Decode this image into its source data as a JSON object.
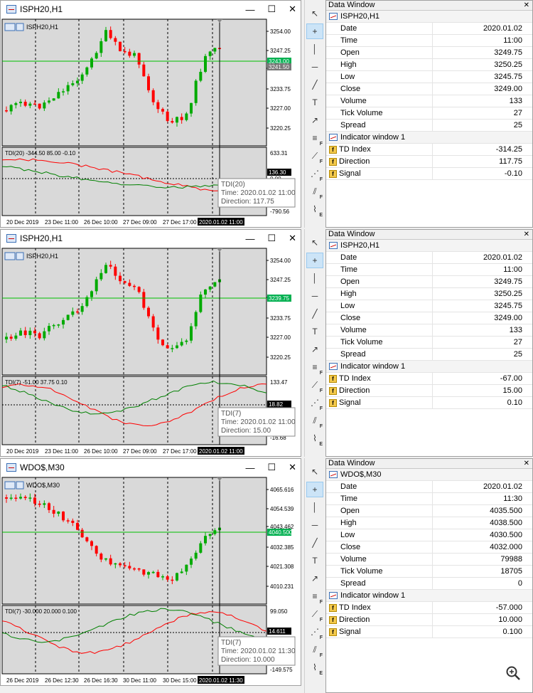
{
  "panels": [
    {
      "title": "ISPH20,H1",
      "symbol_label": "ISPH20,H1",
      "price_ticks": [
        "3254.00",
        "3247.25",
        "3240.50",
        "3233.75",
        "3227.00",
        "3220.25"
      ],
      "price_tags": [
        "3243.00",
        "3241.50"
      ],
      "indicator_label": "TDI(20) -344.50 85.00 -0.10",
      "ind_ticks": [
        "633.31",
        "136.30",
        "0.00",
        "-790.56"
      ],
      "tooltip": [
        "TDI(20)",
        "Time: 2020.01.02 11:00",
        "Direction: 117.75"
      ],
      "time_ticks": [
        "20 Dec 2019",
        "23 Dec 11:00",
        "26 Dec 10:00",
        "27 Dec 09:00",
        "27 Dec 17:00",
        "2020.01.02 11:00"
      ]
    },
    {
      "title": "ISPH20,H1",
      "symbol_label": "ISPH20,H1",
      "price_ticks": [
        "3254.00",
        "3247.25",
        "3240.50",
        "3233.75",
        "3227.00",
        "3220.25"
      ],
      "price_tags": [
        "3239.75"
      ],
      "indicator_label": "TDI(7) -51.00 37.75 0.10",
      "ind_ticks": [
        "133.47",
        "18.82",
        "-16.68"
      ],
      "tooltip": [
        "TDI(7)",
        "Time: 2020.01.02 11:00",
        "Direction: 15.00"
      ],
      "time_ticks": [
        "20 Dec 2019",
        "23 Dec 11:00",
        "26 Dec 10:00",
        "27 Dec 09:00",
        "27 Dec 17:00",
        "2020.01.02 11:00"
      ]
    },
    {
      "title": "WDO$,M30",
      "symbol_label": "WDO$,M30",
      "price_ticks": [
        "4065.616",
        "4054.539",
        "4043.462",
        "4032.385",
        "4021.308",
        "4010.231"
      ],
      "price_tags": [
        "4040.500"
      ],
      "indicator_label": "TDI(7) -30.000 20.000 0.100",
      "ind_ticks": [
        "99.050",
        "14.611",
        "-149.575"
      ],
      "tooltip": [
        "TDI(7)",
        "Time: 2020.01.02 11:30",
        "Direction: 10.000"
      ],
      "time_ticks": [
        "26 Dec 2019",
        "26 Dec 12:30",
        "26 Dec 16:30",
        "30 Dec 11:00",
        "30 Dec 15:00",
        "2020.01.02 11:30"
      ]
    }
  ],
  "data_windows": [
    {
      "title": "Data Window",
      "group": "ISPH20,H1",
      "rows": [
        {
          "label": "Date",
          "value": "2020.01.02"
        },
        {
          "label": "Time",
          "value": "11:00"
        },
        {
          "label": "Open",
          "value": "3249.75"
        },
        {
          "label": "High",
          "value": "3250.25"
        },
        {
          "label": "Low",
          "value": "3245.75"
        },
        {
          "label": "Close",
          "value": "3249.00"
        },
        {
          "label": "Volume",
          "value": "133"
        },
        {
          "label": "Tick Volume",
          "value": "27"
        },
        {
          "label": "Spread",
          "value": "25"
        }
      ],
      "indicator_group": "Indicator window 1",
      "indicator_rows": [
        {
          "label": "TD Index",
          "value": "-314.25"
        },
        {
          "label": "Direction",
          "value": "117.75"
        },
        {
          "label": "Signal",
          "value": "-0.10"
        }
      ]
    },
    {
      "title": "Data Window",
      "group": "ISPH20,H1",
      "rows": [
        {
          "label": "Date",
          "value": "2020.01.02"
        },
        {
          "label": "Time",
          "value": "11:00"
        },
        {
          "label": "Open",
          "value": "3249.75"
        },
        {
          "label": "High",
          "value": "3250.25"
        },
        {
          "label": "Low",
          "value": "3245.75"
        },
        {
          "label": "Close",
          "value": "3249.00"
        },
        {
          "label": "Volume",
          "value": "133"
        },
        {
          "label": "Tick Volume",
          "value": "27"
        },
        {
          "label": "Spread",
          "value": "25"
        }
      ],
      "indicator_group": "Indicator window 1",
      "indicator_rows": [
        {
          "label": "TD Index",
          "value": "-67.00"
        },
        {
          "label": "Direction",
          "value": "15.00"
        },
        {
          "label": "Signal",
          "value": "0.10"
        }
      ]
    },
    {
      "title": "Data Window",
      "group": "WDO$,M30",
      "rows": [
        {
          "label": "Date",
          "value": "2020.01.02"
        },
        {
          "label": "Time",
          "value": "11:30"
        },
        {
          "label": "Open",
          "value": "4035.500"
        },
        {
          "label": "High",
          "value": "4038.500"
        },
        {
          "label": "Low",
          "value": "4030.500"
        },
        {
          "label": "Close",
          "value": "4032.000"
        },
        {
          "label": "Volume",
          "value": "79988"
        },
        {
          "label": "Tick Volume",
          "value": "18705"
        },
        {
          "label": "Spread",
          "value": "0"
        }
      ],
      "indicator_group": "Indicator window 1",
      "indicator_rows": [
        {
          "label": "TD Index",
          "value": "-57.000"
        },
        {
          "label": "Direction",
          "value": "10.000"
        },
        {
          "label": "Signal",
          "value": "0.100"
        }
      ]
    }
  ],
  "window_controls": {
    "minimize": "—",
    "maximize": "☐",
    "close": "✕"
  },
  "toolbar_icons": [
    "cursor-icon",
    "crosshair-icon",
    "vertical-line-icon",
    "horizontal-line-icon",
    "trendline-icon",
    "text-icon",
    "arrow-icon",
    "fibo-retracement-icon",
    "fibo-fan-icon",
    "fibo-arcs-icon",
    "fibo-expansion-icon",
    "elliott-wave-icon"
  ],
  "colors": {
    "bull": "#00aa00",
    "bear": "#ff0000",
    "chart_bg": "#d9d9d9",
    "price_line": "#00c000",
    "tdi_red": "#ff0000",
    "tdi_green": "#008000"
  }
}
